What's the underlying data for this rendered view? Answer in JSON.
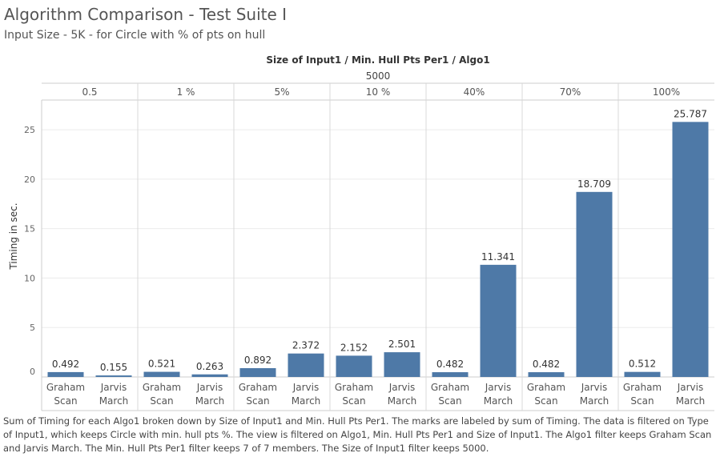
{
  "header": {
    "title": "Algorithm Comparison - Test Suite I",
    "subtitle": "Input Size - 5K - for Circle with % of pts on hull"
  },
  "caption": "Sum of Timing for each Algo1 broken down by Size of Input1 and Min. Hull Pts Per1.  The marks are labeled by sum of Timing. The data is filtered on Type of Input1, which keeps Circle with min. hull pts %. The view is filtered on Algo1, Min. Hull Pts Per1 and Size of Input1. The Algo1 filter keeps Graham Scan and Jarvis March. The Min. Hull Pts Per1 filter keeps 7 of 7 members. The Size of Input1 filter keeps 5000.",
  "chart_data": {
    "type": "bar",
    "column_header_title": "Size of Input1 / Min. Hull Pts Per1 / Algo1",
    "size_value": "5000",
    "groups": [
      "0.5",
      "1 %",
      "5%",
      "10 %",
      "40%",
      "70%",
      "100%"
    ],
    "algos": [
      [
        "Graham",
        "Scan"
      ],
      [
        "Jarvis",
        "March"
      ]
    ],
    "values": [
      [
        0.492,
        0.155
      ],
      [
        0.521,
        0.263
      ],
      [
        0.892,
        2.372
      ],
      [
        2.152,
        2.501
      ],
      [
        0.482,
        11.341
      ],
      [
        0.482,
        18.709
      ],
      [
        0.512,
        25.787
      ]
    ],
    "value_labels": [
      [
        "0.492",
        "0.155"
      ],
      [
        "0.521",
        "0.263"
      ],
      [
        "0.892",
        "2.372"
      ],
      [
        "2.152",
        "2.501"
      ],
      [
        "0.482",
        "11.341"
      ],
      [
        "0.482",
        "18.709"
      ],
      [
        "0.512",
        "25.787"
      ]
    ],
    "ylabel": "Timing in sec.",
    "ylim": [
      0,
      28
    ],
    "yticks": [
      0,
      5,
      10,
      15,
      20,
      25
    ],
    "bar_color": "#4e79a7"
  }
}
